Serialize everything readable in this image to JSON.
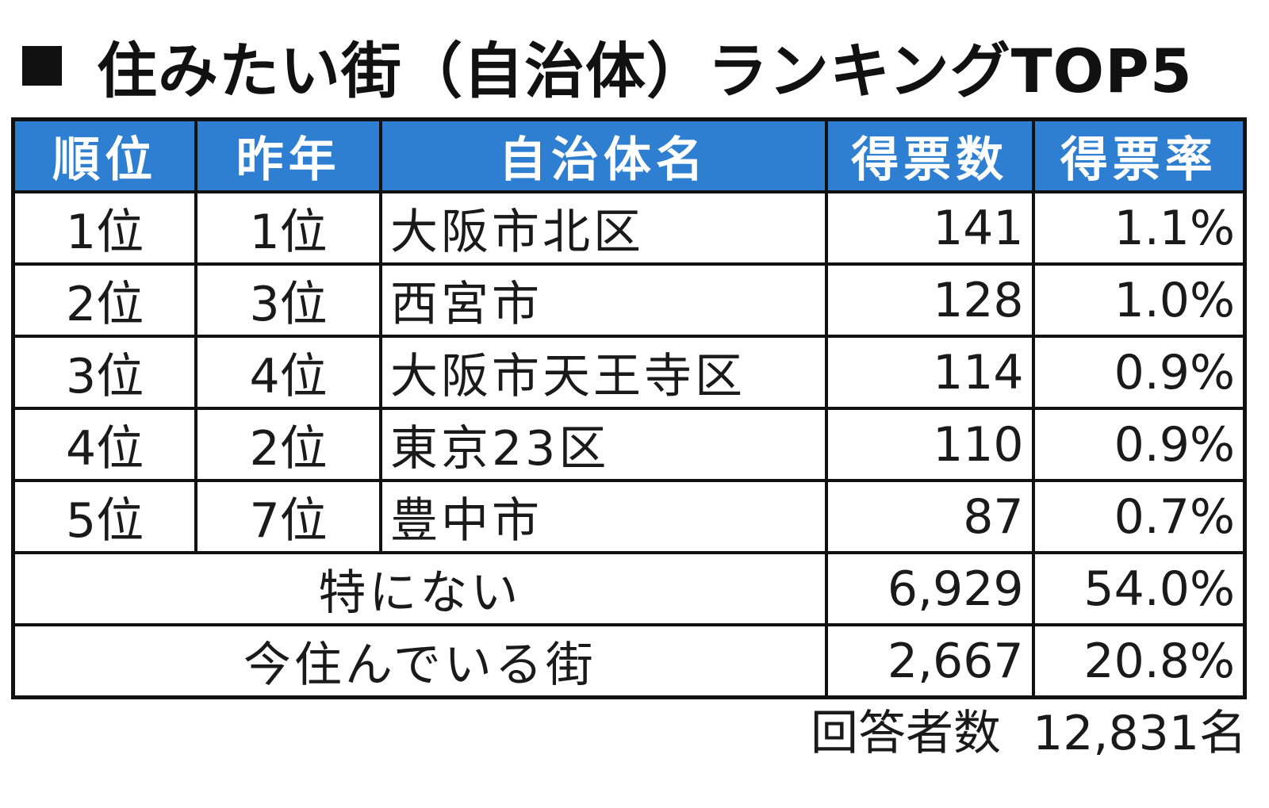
{
  "title": "住みたい街（自治体）ランキングTOP5",
  "table": {
    "headers": [
      "順位",
      "昨年",
      "自治体名",
      "得票数",
      "得票率"
    ],
    "rows": [
      {
        "rank": "1位",
        "last_year": "1位",
        "name": "大阪市北区",
        "votes": "141",
        "rate": "1.1%"
      },
      {
        "rank": "2位",
        "last_year": "3位",
        "name": "西宮市",
        "votes": "128",
        "rate": "1.0%"
      },
      {
        "rank": "3位",
        "last_year": "4位",
        "name": "大阪市天王寺区",
        "votes": "114",
        "rate": "0.9%"
      },
      {
        "rank": "4位",
        "last_year": "2位",
        "name": "東京23区",
        "votes": "110",
        "rate": "0.9%"
      },
      {
        "rank": "5位",
        "last_year": "7位",
        "name": "豊中市",
        "votes": "87",
        "rate": "0.7%"
      }
    ],
    "extra_rows": [
      {
        "label": "特にない",
        "votes": "6,929",
        "rate": "54.0%"
      },
      {
        "label": "今住んでいる街",
        "votes": "2,667",
        "rate": "20.8%"
      }
    ]
  },
  "footer": {
    "label": "回答者数",
    "value": "12,831名"
  },
  "colors": {
    "header_bg": "#2e7fd1",
    "header_text": "#ffffff",
    "border": "#111111"
  }
}
